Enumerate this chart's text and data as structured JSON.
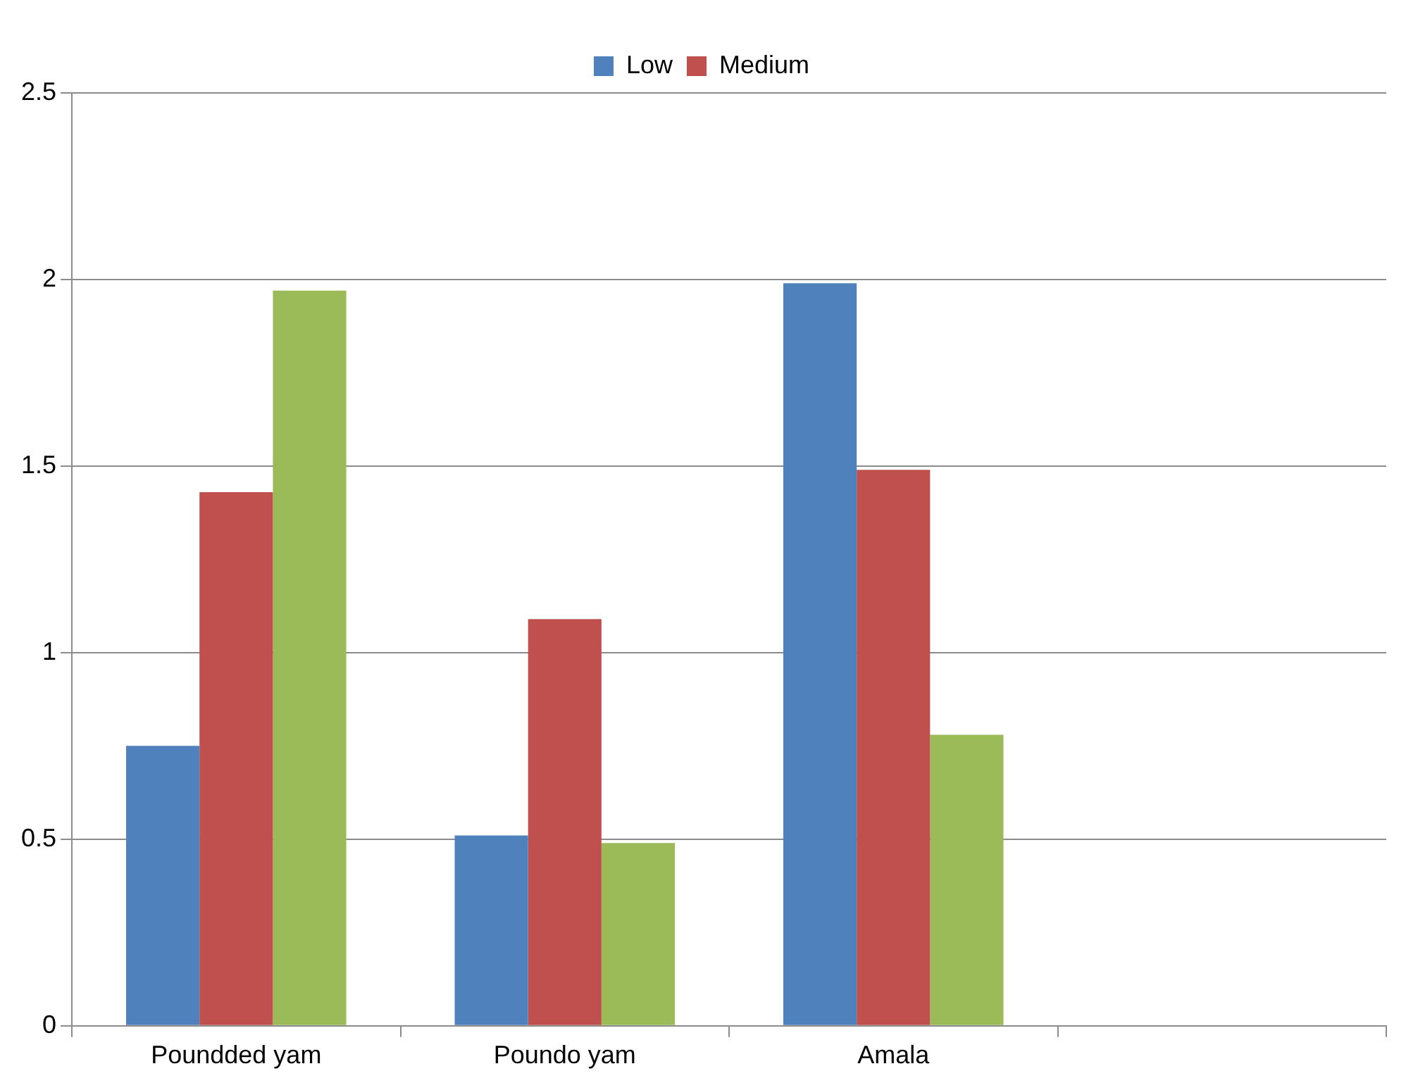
{
  "chart_data": {
    "type": "bar",
    "categories": [
      "Poundded yam",
      "Poundo yam",
      "Amala",
      null
    ],
    "series": [
      {
        "name": "Low",
        "color": "#4f81bd",
        "values": [
          0.75,
          0.51,
          1.99,
          null
        ]
      },
      {
        "name": "Medium",
        "color": "#c0504d",
        "values": [
          1.43,
          1.09,
          1.49,
          null
        ]
      },
      {
        "color": "#9bbb59",
        "values": [
          1.97,
          0.49,
          0.78,
          null
        ]
      }
    ],
    "ylim": [
      0,
      2.5
    ],
    "yticks": [
      0,
      0.5,
      1,
      1.5,
      2,
      2.5
    ],
    "grid": "y",
    "legend": "top"
  }
}
